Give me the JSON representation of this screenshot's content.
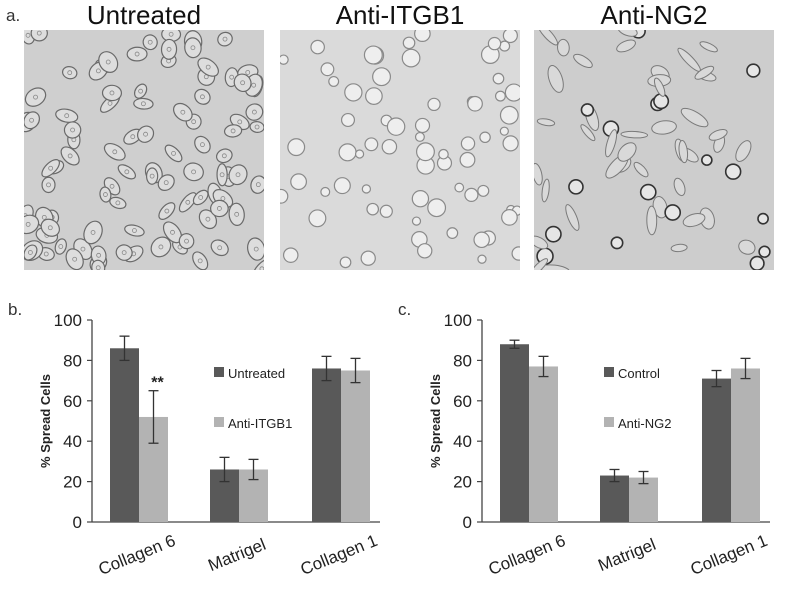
{
  "figure": {
    "panel_a_label": "a.",
    "panel_b_label": "b.",
    "panel_c_label": "c.",
    "micrographs": [
      {
        "title": "Untreated"
      },
      {
        "title": "Anti-ITGB1"
      },
      {
        "title": "Anti-NG2"
      }
    ]
  },
  "chart_data": [
    {
      "type": "bar",
      "panel": "b",
      "title": "",
      "xlabel": "",
      "ylabel": "% Spread Cells",
      "ylim": [
        0,
        100
      ],
      "yticks": [
        0,
        20,
        40,
        60,
        80,
        100
      ],
      "categories": [
        "Collagen 6",
        "Matrigel",
        "Collagen 1"
      ],
      "series": [
        {
          "name": "Untreated",
          "color": "#595959",
          "values": [
            86,
            26,
            76
          ],
          "errors": [
            6,
            6,
            6
          ]
        },
        {
          "name": "Anti-ITGB1",
          "color": "#b3b3b3",
          "values": [
            52,
            26,
            75
          ],
          "errors": [
            13,
            5,
            6
          ]
        }
      ],
      "annotations": [
        {
          "text": "**",
          "category": "Collagen 6",
          "series": 1
        }
      ],
      "legend_position": "center"
    },
    {
      "type": "bar",
      "panel": "c",
      "title": "",
      "xlabel": "",
      "ylabel": "% Spread Cells",
      "ylim": [
        0,
        100
      ],
      "yticks": [
        0,
        20,
        40,
        60,
        80,
        100
      ],
      "categories": [
        "Collagen 6",
        "Matrigel",
        "Collagen 1"
      ],
      "series": [
        {
          "name": "Control",
          "color": "#595959",
          "values": [
            88,
            23,
            71
          ],
          "errors": [
            2,
            3,
            4
          ]
        },
        {
          "name": "Anti-NG2",
          "color": "#b3b3b3",
          "values": [
            77,
            22,
            76
          ],
          "errors": [
            5,
            3,
            5
          ]
        }
      ],
      "annotations": [],
      "legend_position": "center"
    }
  ]
}
